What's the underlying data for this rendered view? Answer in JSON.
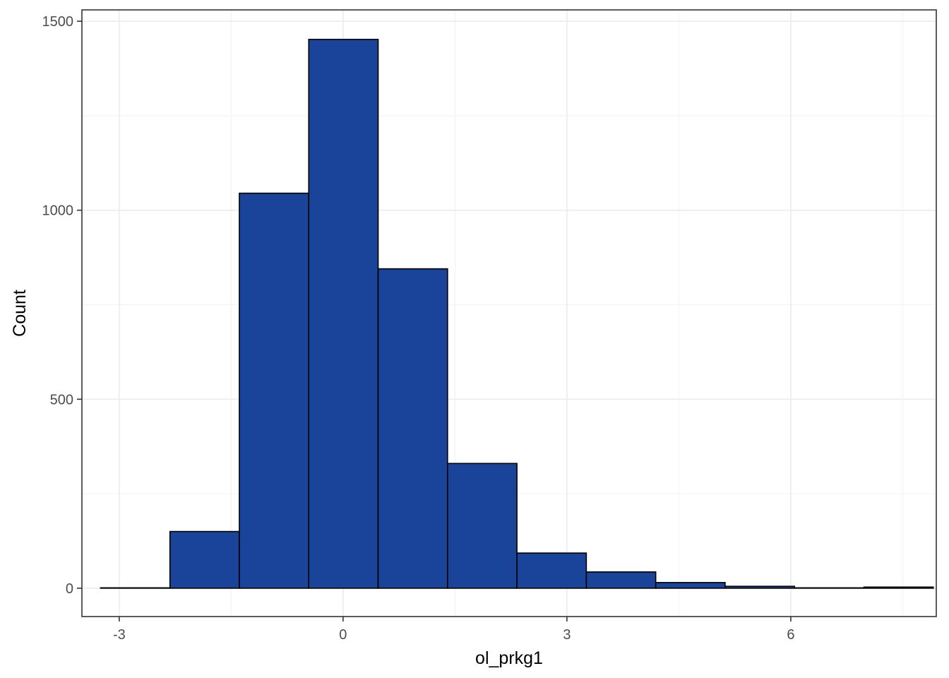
{
  "chart_data": {
    "type": "bar",
    "subtype": "histogram",
    "xlabel": "ol_prkg1",
    "ylabel": "Count",
    "xlim": [
      -3.5,
      7.95
    ],
    "ylim": [
      -75,
      1530
    ],
    "x_ticks": [
      -3,
      0,
      3,
      6
    ],
    "x_tick_labels": [
      "-3",
      "0",
      "3",
      "6"
    ],
    "y_ticks": [
      0,
      500,
      1000,
      1500
    ],
    "y_tick_labels": [
      "0",
      "500",
      "1000",
      "1500"
    ],
    "bins": [
      {
        "x_start": -3.25,
        "x_end": -2.32,
        "count": 1
      },
      {
        "x_start": -2.32,
        "x_end": -1.39,
        "count": 150
      },
      {
        "x_start": -1.39,
        "x_end": -0.46,
        "count": 1045
      },
      {
        "x_start": -0.46,
        "x_end": 0.47,
        "count": 1452
      },
      {
        "x_start": 0.47,
        "x_end": 1.4,
        "count": 845
      },
      {
        "x_start": 1.4,
        "x_end": 2.33,
        "count": 330
      },
      {
        "x_start": 2.33,
        "x_end": 3.26,
        "count": 93
      },
      {
        "x_start": 3.26,
        "x_end": 4.19,
        "count": 43
      },
      {
        "x_start": 4.19,
        "x_end": 5.12,
        "count": 15
      },
      {
        "x_start": 5.12,
        "x_end": 6.05,
        "count": 5
      },
      {
        "x_start": 6.05,
        "x_end": 6.98,
        "count": 1
      },
      {
        "x_start": 6.98,
        "x_end": 7.91,
        "count": 3
      }
    ],
    "grid": true,
    "colors": {
      "bar_fill": "#1a4499",
      "bar_outline": "#000000",
      "grid_major": "#ebebeb",
      "grid_minor": "#f3f3f3",
      "panel_border": "#333333"
    }
  }
}
